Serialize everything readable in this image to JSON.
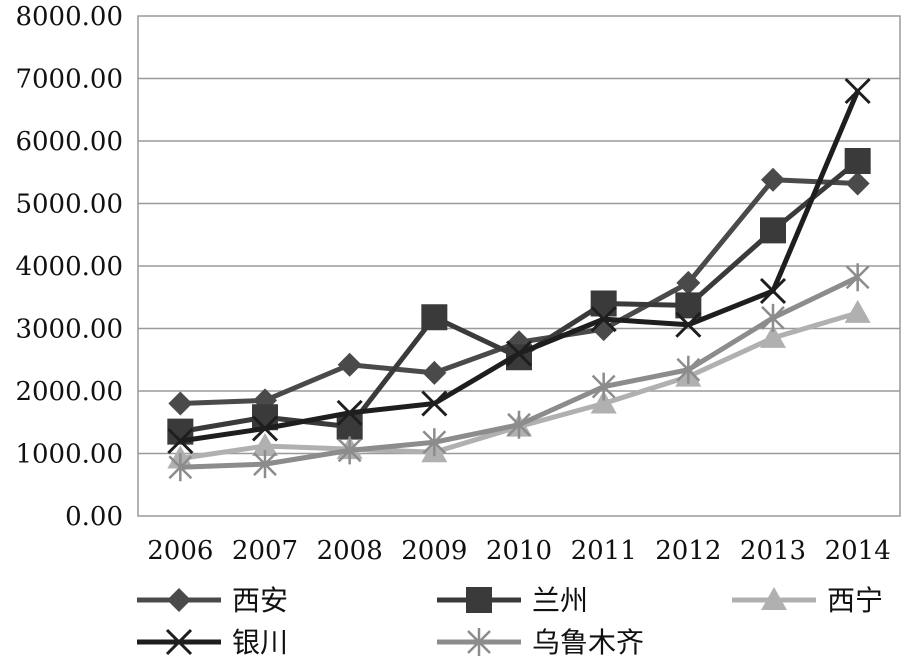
{
  "chart_data": {
    "type": "line",
    "x": [
      "2006",
      "2007",
      "2008",
      "2009",
      "2010",
      "2011",
      "2012",
      "2013",
      "2014"
    ],
    "yticks": [
      "0.00",
      "1000.00",
      "2000.00",
      "3000.00",
      "4000.00",
      "5000.00",
      "6000.00",
      "7000.00",
      "8000.00"
    ],
    "ylim": [
      0,
      8000
    ],
    "grid": true,
    "legend_position": "bottom",
    "series": [
      {
        "name": "西安",
        "marker": "diamond",
        "color": "#4a4a4a",
        "values": [
          1800,
          1850,
          2420,
          2290,
          2780,
          2990,
          3730,
          5380,
          5320
        ]
      },
      {
        "name": "兰州",
        "marker": "square",
        "color": "#3a3a3a",
        "values": [
          1350,
          1580,
          1430,
          3180,
          2540,
          3400,
          3370,
          4570,
          5680
        ]
      },
      {
        "name": "西宁",
        "marker": "triangle",
        "color": "#b0b0b0",
        "values": [
          920,
          1120,
          1070,
          1020,
          1430,
          1800,
          2230,
          2850,
          3250
        ]
      },
      {
        "name": "银川",
        "marker": "x",
        "color": "#1e1e1e",
        "values": [
          1200,
          1400,
          1650,
          1800,
          2600,
          3150,
          3060,
          3600,
          6800
        ]
      },
      {
        "name": "乌鲁木齐",
        "marker": "asterisk",
        "color": "#8c8c8c",
        "values": [
          780,
          830,
          1050,
          1180,
          1460,
          2070,
          2340,
          3170,
          3820
        ]
      }
    ]
  }
}
